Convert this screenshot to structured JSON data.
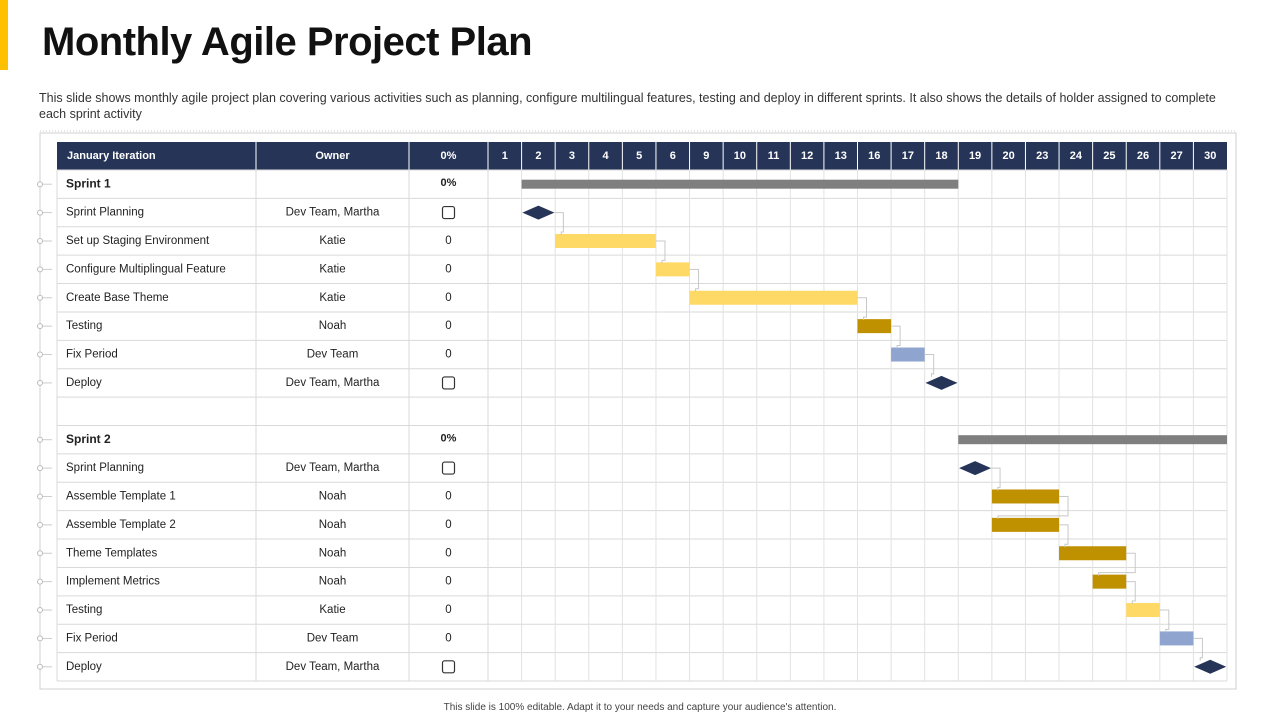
{
  "title": "Monthly Agile Project Plan",
  "description": "This slide shows monthly agile project plan covering various activities such as planning, configure multilingual features, testing and deploy in different sprints. It also shows the details of holder assigned to complete each sprint activity",
  "footer": "This slide is 100% editable. Adapt it to your needs and capture your audience's attention.",
  "table": {
    "header": {
      "name": "January Iteration",
      "owner": "Owner",
      "status": "0%"
    },
    "days": [
      1,
      2,
      3,
      4,
      5,
      6,
      9,
      10,
      11,
      12,
      13,
      16,
      17,
      18,
      19,
      20,
      23,
      24,
      25,
      26,
      27,
      30
    ],
    "rows": [
      {
        "name": "Sprint 1",
        "status": "0%",
        "start": 2,
        "end": 18,
        "color": "#7f7f7f"
      },
      {
        "name": "Sprint Planning",
        "owner": "Dev Team, Martha",
        "milestone": 2,
        "color": "#263557"
      },
      {
        "name": "Set up Staging Environment",
        "owner": "Katie",
        "status": "0",
        "start": 3,
        "end": 5,
        "color": "#FFD966"
      },
      {
        "name": "Configure Multiplingual Feature",
        "owner": "Katie",
        "status": "0",
        "start": 6,
        "end": 6,
        "color": "#FFD966"
      },
      {
        "name": "Create Base Theme",
        "owner": "Katie",
        "status": "0",
        "start": 9,
        "end": 13,
        "color": "#FFD966"
      },
      {
        "name": "Testing",
        "owner": "Noah",
        "status": "0",
        "start": 16,
        "end": 16,
        "color": "#BF9000"
      },
      {
        "name": "Fix Period",
        "owner": "Dev Team",
        "status": "0",
        "start": 17,
        "end": 17,
        "color": "#8FA4CF"
      },
      {
        "name": "Deploy",
        "owner": "Dev Team, Martha",
        "milestone": 18,
        "color": "#263557"
      },
      {},
      {
        "name": "Sprint 2",
        "status": "0%",
        "start": 19,
        "end": 30,
        "color": "#7f7f7f"
      },
      {
        "name": "Sprint Planning",
        "owner": "Dev Team, Martha",
        "milestone": 19,
        "color": "#263557"
      },
      {
        "name": "Assemble Template 1",
        "owner": "Noah",
        "status": "0",
        "start": 20,
        "end": 23,
        "color": "#BF9000"
      },
      {
        "name": "Assemble Template 2",
        "owner": "Noah",
        "status": "0",
        "start": 20,
        "end": 23,
        "color": "#BF9000"
      },
      {
        "name": "Theme Templates",
        "owner": "Noah",
        "status": "0",
        "start": 24,
        "end": 25,
        "color": "#BF9000"
      },
      {
        "name": "Implement Metrics",
        "owner": "Noah",
        "status": "0",
        "start": 25,
        "end": 25,
        "color": "#BF9000"
      },
      {
        "name": "Testing",
        "owner": "Katie",
        "status": "0",
        "start": 26,
        "end": 26,
        "color": "#FFD966"
      },
      {
        "name": "Fix Period",
        "owner": "Dev Team",
        "status": "0",
        "start": 27,
        "end": 27,
        "color": "#8FA4CF"
      },
      {
        "name": "Deploy",
        "owner": "Dev Team, Martha",
        "milestone": 30,
        "color": "#263557"
      }
    ]
  }
}
